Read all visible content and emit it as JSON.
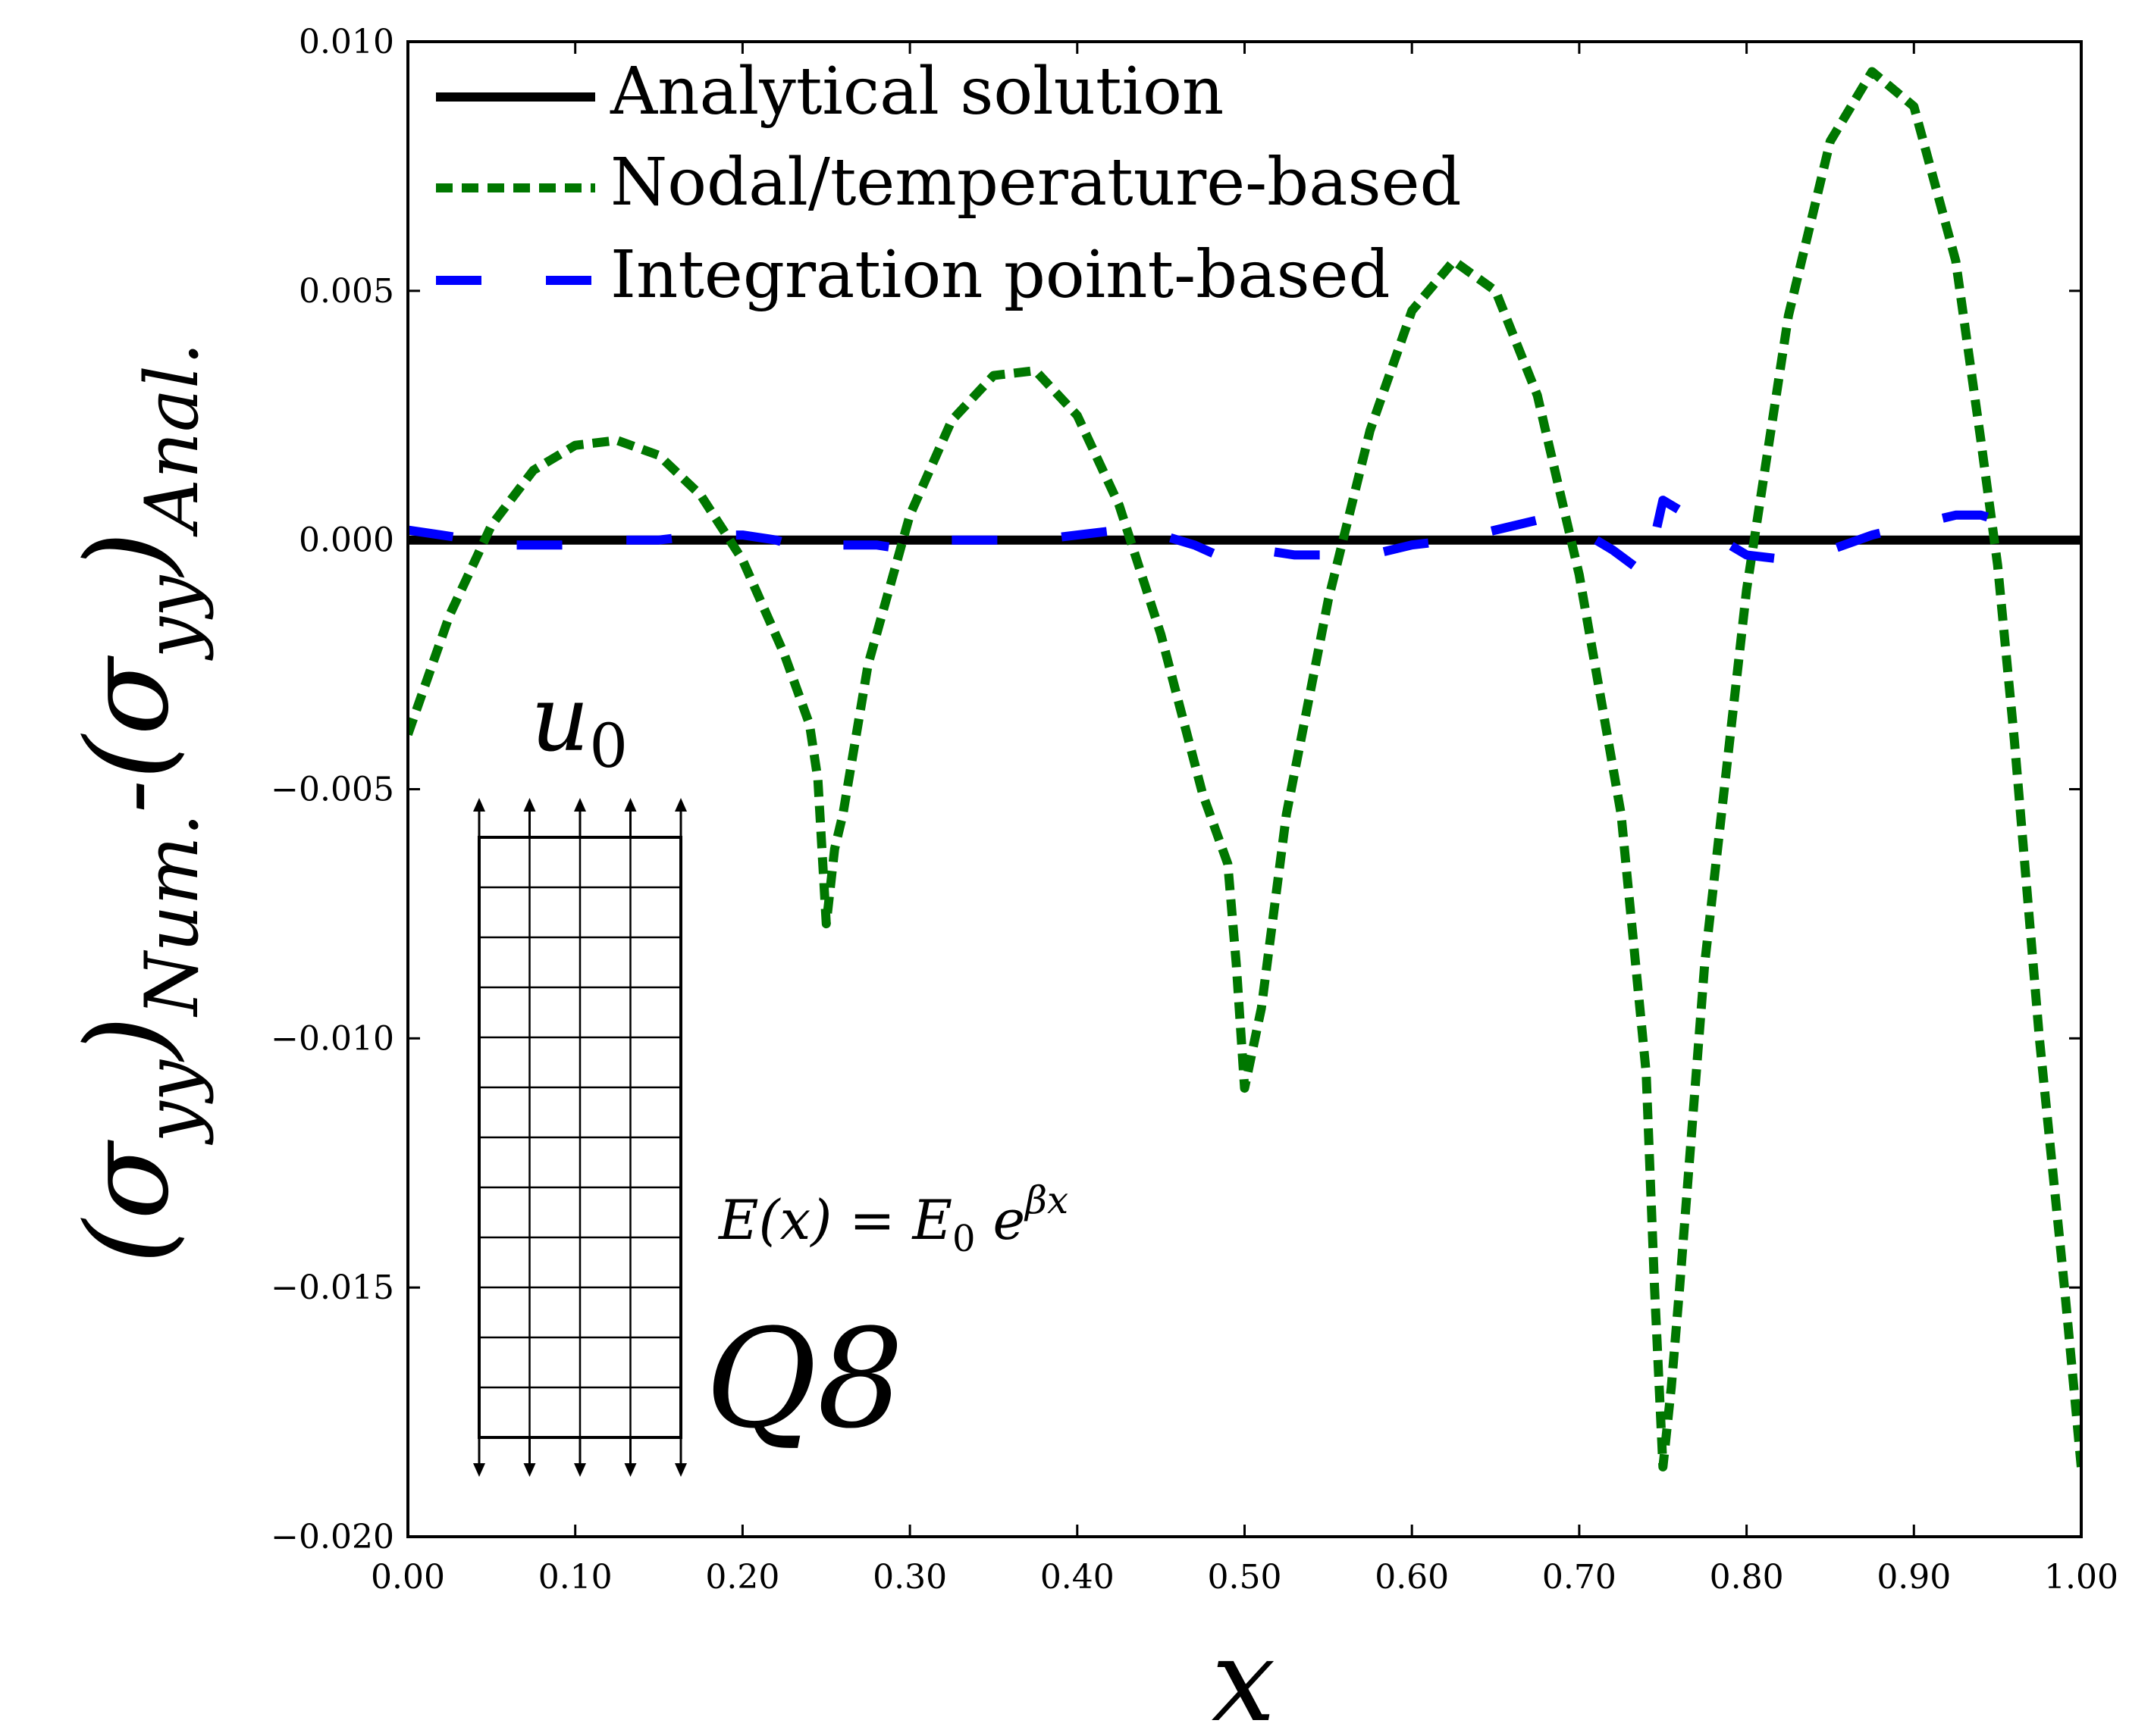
{
  "chart_data": {
    "type": "line",
    "title": "",
    "xlabel": "x",
    "ylabel": {
      "main": "(σ",
      "sub1": "yy",
      "close1": ")",
      "sub2": "Num.",
      "dash": "-",
      "open2": "(σ",
      "sub3": "yy",
      "close2": ")",
      "sub4": "Anal."
    },
    "xlim": [
      0.0,
      1.0
    ],
    "ylim": [
      -0.02,
      0.01
    ],
    "xticks": [
      "0.00",
      "0.10",
      "0.20",
      "0.30",
      "0.40",
      "0.50",
      "0.60",
      "0.70",
      "0.80",
      "0.90",
      "1.00"
    ],
    "yticks": [
      "0.010",
      "0.005",
      "0.000",
      "−0.005",
      "−0.010",
      "−0.015",
      "−0.020"
    ],
    "grid": false,
    "legend_position": "top-left",
    "series": [
      {
        "name": "Analytical solution",
        "color": "#000000",
        "style": "solid",
        "x": [
          0.0,
          1.0
        ],
        "y": [
          0.0,
          0.0
        ]
      },
      {
        "name": "Nodal/temperature-based",
        "color": "#007700",
        "style": "dotted",
        "x": [
          0.0,
          0.025,
          0.05,
          0.075,
          0.1,
          0.125,
          0.15,
          0.175,
          0.2,
          0.225,
          0.24,
          0.245,
          0.25,
          0.255,
          0.26,
          0.275,
          0.3,
          0.325,
          0.35,
          0.375,
          0.4,
          0.425,
          0.45,
          0.475,
          0.49,
          0.495,
          0.5,
          0.505,
          0.51,
          0.525,
          0.55,
          0.575,
          0.6,
          0.625,
          0.65,
          0.675,
          0.7,
          0.725,
          0.74,
          0.745,
          0.75,
          0.755,
          0.76,
          0.775,
          0.8,
          0.825,
          0.85,
          0.875,
          0.9,
          0.925,
          0.94,
          0.95,
          0.96,
          0.975,
          0.99,
          1.0
        ],
        "y": [
          -0.0039,
          -0.0015,
          0.0003,
          0.0014,
          0.0019,
          0.002,
          0.0017,
          0.0009,
          -0.0004,
          -0.0023,
          -0.0037,
          -0.0048,
          -0.0077,
          -0.0062,
          -0.0055,
          -0.0025,
          0.0005,
          0.0024,
          0.0033,
          0.0034,
          0.0025,
          0.0007,
          -0.0019,
          -0.0051,
          -0.0065,
          -0.0085,
          -0.011,
          -0.0102,
          -0.0094,
          -0.0055,
          -0.0012,
          0.0022,
          0.0046,
          0.0056,
          0.005,
          0.0029,
          -0.0007,
          -0.0055,
          -0.0107,
          -0.015,
          -0.0186,
          -0.017,
          -0.015,
          -0.0085,
          -0.001,
          0.0045,
          0.008,
          0.0094,
          0.0087,
          0.0056,
          0.002,
          -0.0005,
          -0.004,
          -0.01,
          -0.015,
          -0.0186
        ]
      },
      {
        "name": "Integration point-based",
        "color": "#0000ff",
        "style": "dashed",
        "x": [
          0.0,
          0.02,
          0.04,
          0.06,
          0.08,
          0.1,
          0.125,
          0.15,
          0.175,
          0.2,
          0.22,
          0.24,
          0.25,
          0.26,
          0.28,
          0.3,
          0.325,
          0.35,
          0.375,
          0.4,
          0.425,
          0.45,
          0.47,
          0.49,
          0.5,
          0.51,
          0.53,
          0.55,
          0.575,
          0.6,
          0.625,
          0.65,
          0.675,
          0.7,
          0.72,
          0.74,
          0.75,
          0.76,
          0.78,
          0.8,
          0.825,
          0.85,
          0.875,
          0.9,
          0.925,
          0.94,
          0.96,
          0.975
        ],
        "y": [
          0.0002,
          0.0001,
          0.0,
          -0.0001,
          -0.0001,
          -0.0001,
          0.0,
          0.0,
          0.0001,
          0.0001,
          0.0,
          -0.0002,
          -0.0001,
          -0.0001,
          -0.0001,
          -0.0002,
          0.0,
          0.0,
          0.0,
          0.0001,
          0.0002,
          0.0001,
          -0.0001,
          -0.0004,
          -0.0003,
          -0.0002,
          -0.0003,
          -0.0003,
          -0.0003,
          -0.0001,
          0.0,
          0.0002,
          0.0004,
          0.0002,
          -0.0002,
          -0.0007,
          0.0008,
          0.0006,
          0.0001,
          -0.0003,
          -0.0004,
          -0.0002,
          0.0001,
          0.0003,
          0.0005,
          0.0005,
          0.0003,
          0.0
        ]
      }
    ],
    "annotations": {
      "boundary_label": "u",
      "boundary_sub": "0",
      "equation_lhs": "E(x) = E",
      "equation_sub": "0",
      "equation_base": " e",
      "equation_exp": "βx",
      "element_label": "Q8",
      "mesh_columns": 4,
      "mesh_rows": 12
    }
  }
}
